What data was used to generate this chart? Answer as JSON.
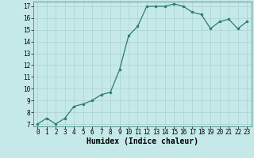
{
  "x": [
    0,
    1,
    2,
    3,
    4,
    5,
    6,
    7,
    8,
    9,
    10,
    11,
    12,
    13,
    14,
    15,
    16,
    17,
    18,
    19,
    20,
    21,
    22,
    23
  ],
  "y": [
    7.0,
    7.5,
    7.0,
    7.5,
    8.5,
    8.7,
    9.0,
    9.5,
    9.7,
    11.6,
    14.5,
    15.3,
    17.0,
    17.0,
    17.0,
    17.2,
    17.0,
    16.5,
    16.3,
    15.1,
    15.7,
    15.9,
    15.1,
    15.7
  ],
  "xlabel": "Humidex (Indice chaleur)",
  "ylim_min": 6.8,
  "ylim_max": 17.4,
  "xlim_min": -0.5,
  "xlim_max": 23.5,
  "yticks": [
    7,
    8,
    9,
    10,
    11,
    12,
    13,
    14,
    15,
    16,
    17
  ],
  "xticks": [
    0,
    1,
    2,
    3,
    4,
    5,
    6,
    7,
    8,
    9,
    10,
    11,
    12,
    13,
    14,
    15,
    16,
    17,
    18,
    19,
    20,
    21,
    22,
    23
  ],
  "line_color": "#2a7d6d",
  "marker_color": "#2a7d6d",
  "bg_color": "#c5e8e8",
  "grid_color": "#b0d0d0",
  "xlabel_fontsize": 7,
  "tick_fontsize": 5.5,
  "linewidth": 0.9,
  "markersize": 2.0
}
